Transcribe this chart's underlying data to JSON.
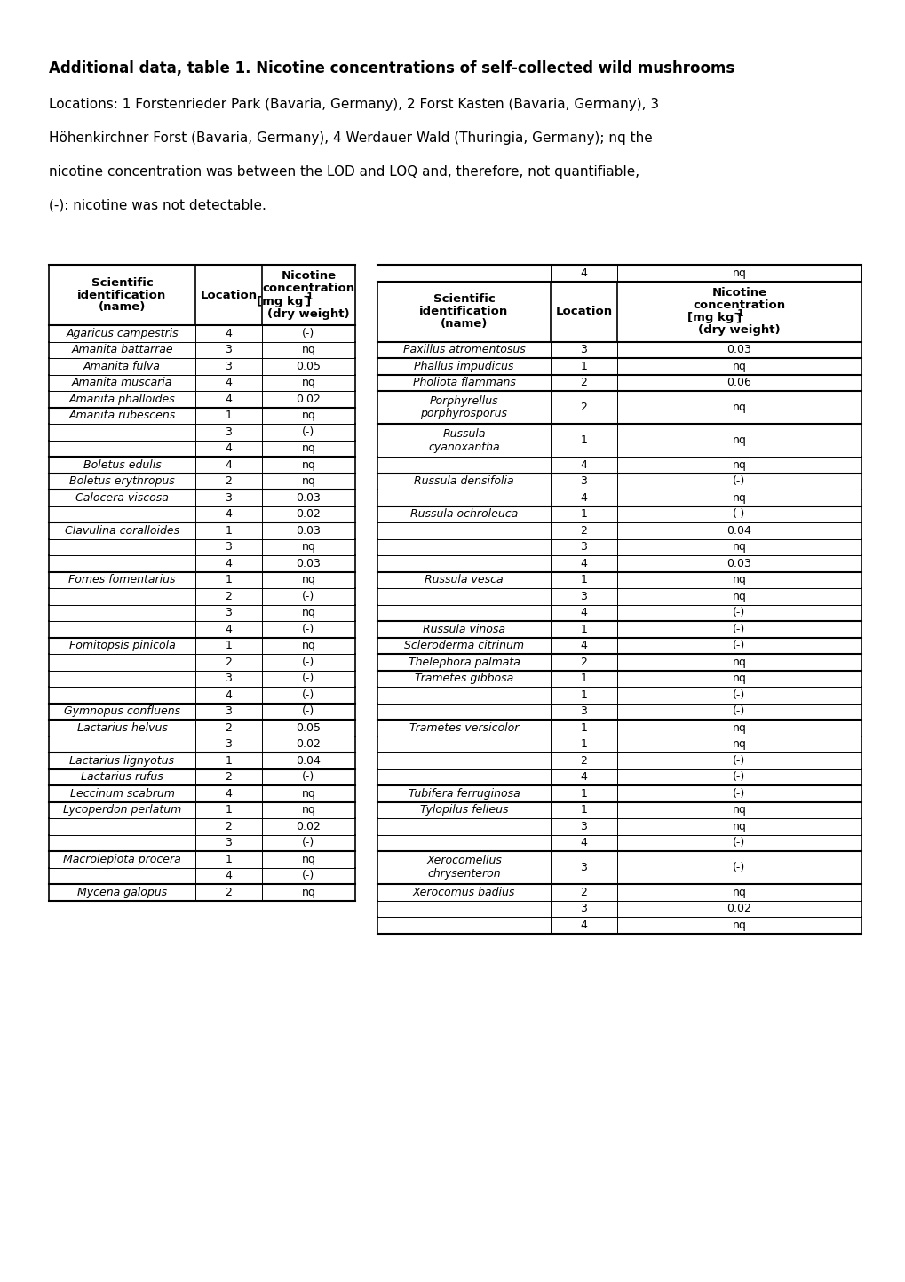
{
  "title_bold": "Additional data, table 1. Nicotine concentrations of self-collected wild mushrooms",
  "footnote_lines": [
    "Locations: 1 Forstenrieder Park (Bavaria, Germany), 2 Forst Kasten (Bavaria, Germany), 3",
    "Höhenkirchner Forst (Bavaria, Germany), 4 Werdauer Wald (Thuringia, Germany); nq the",
    "nicotine concentration was between the LOD and LOQ and, therefore, not quantifiable,",
    "(-): nicotine was not detectable."
  ],
  "left_table": {
    "col_headers": [
      "Scientific\nidentification\n(name)",
      "Location",
      "Nicotine\nconcentration\n[mg kg-1]\n(dry weight)"
    ],
    "rows": [
      [
        "Agaricus campestris",
        "4",
        "(-)"
      ],
      [
        "Amanita battarrae",
        "3",
        "nq"
      ],
      [
        "Amanita fulva",
        "3",
        "0.05"
      ],
      [
        "Amanita muscaria",
        "4",
        "nq"
      ],
      [
        "Amanita phalloides",
        "4",
        "0.02"
      ],
      [
        "Amanita rubescens",
        "1",
        "nq"
      ],
      [
        "",
        "3",
        "(-)"
      ],
      [
        "",
        "4",
        "nq"
      ],
      [
        "Boletus edulis",
        "4",
        "nq"
      ],
      [
        "Boletus erythropus",
        "2",
        "nq"
      ],
      [
        "Calocera viscosa",
        "3",
        "0.03"
      ],
      [
        "",
        "4",
        "0.02"
      ],
      [
        "Clavulina coralloides",
        "1",
        "0.03"
      ],
      [
        "",
        "3",
        "nq"
      ],
      [
        "",
        "4",
        "0.03"
      ],
      [
        "Fomes fomentarius",
        "1",
        "nq"
      ],
      [
        "",
        "2",
        "(-)"
      ],
      [
        "",
        "3",
        "nq"
      ],
      [
        "",
        "4",
        "(-)"
      ],
      [
        "Fomitopsis pinicola",
        "1",
        "nq"
      ],
      [
        "",
        "2",
        "(-)"
      ],
      [
        "",
        "3",
        "(-)"
      ],
      [
        "",
        "4",
        "(-)"
      ],
      [
        "Gymnopus confluens",
        "3",
        "(-)"
      ],
      [
        "Lactarius helvus",
        "2",
        "0.05"
      ],
      [
        "",
        "3",
        "0.02"
      ],
      [
        "Lactarius lignyotus",
        "1",
        "0.04"
      ],
      [
        "Lactarius rufus",
        "2",
        "(-)"
      ],
      [
        "Leccinum scabrum",
        "4",
        "nq"
      ],
      [
        "Lycoperdon perlatum",
        "1",
        "nq"
      ],
      [
        "",
        "2",
        "0.02"
      ],
      [
        "",
        "3",
        "(-)"
      ],
      [
        "Macrolepiota procera",
        "1",
        "nq"
      ],
      [
        "",
        "4",
        "(-)"
      ],
      [
        "Mycena galopus",
        "2",
        "nq"
      ]
    ],
    "thick_after": [
      4,
      7,
      8,
      9,
      11,
      14,
      18,
      22,
      23,
      25,
      26,
      27,
      28,
      31,
      33,
      34
    ]
  },
  "right_table": {
    "col_headers": [
      "Scientific\nidentification\n(name)",
      "Location",
      "Nicotine\nconcentration\n[mg kg-1]\n(dry weight)"
    ],
    "top_row": [
      "",
      "4",
      "nq"
    ],
    "rows": [
      [
        "Paxillus atromentosus",
        "3",
        "0.03"
      ],
      [
        "Phallus impudicus",
        "1",
        "nq"
      ],
      [
        "Pholiota flammans",
        "2",
        "0.06"
      ],
      [
        "Porphyrellus\nporphyrosporus",
        "2",
        "nq"
      ],
      [
        "Russula\ncyanoxantha",
        "1",
        "nq"
      ],
      [
        "",
        "4",
        "nq"
      ],
      [
        "Russula densifolia",
        "3",
        "(-)"
      ],
      [
        "",
        "4",
        "nq"
      ],
      [
        "Russula ochroleuca",
        "1",
        "(-)"
      ],
      [
        "",
        "2",
        "0.04"
      ],
      [
        "",
        "3",
        "nq"
      ],
      [
        "",
        "4",
        "0.03"
      ],
      [
        "Russula vesca",
        "1",
        "nq"
      ],
      [
        "",
        "3",
        "nq"
      ],
      [
        "",
        "4",
        "(-)"
      ],
      [
        "Russula vinosa",
        "1",
        "(-)"
      ],
      [
        "Scleroderma citrinum",
        "4",
        "(-)"
      ],
      [
        "Thelephora palmata",
        "2",
        "nq"
      ],
      [
        "Trametes gibbosa",
        "1",
        "nq"
      ],
      [
        "",
        "1",
        "(-)"
      ],
      [
        "",
        "3",
        "(-)"
      ],
      [
        "Trametes versicolor",
        "1",
        "nq"
      ],
      [
        "",
        "1",
        "nq"
      ],
      [
        "",
        "2",
        "(-)"
      ],
      [
        "",
        "4",
        "(-)"
      ],
      [
        "Tubifera ferruginosa",
        "1",
        "(-)"
      ],
      [
        "Tylopilus felleus",
        "1",
        "nq"
      ],
      [
        "",
        "3",
        "nq"
      ],
      [
        "",
        "4",
        "(-)"
      ],
      [
        "Xerocomellus\nchrysenteron",
        "3",
        "(-)"
      ],
      [
        "Xerocomus badius",
        "2",
        "nq"
      ],
      [
        "",
        "3",
        "0.02"
      ],
      [
        "",
        "4",
        "nq"
      ]
    ],
    "thick_after": [
      0,
      1,
      2,
      3,
      5,
      7,
      11,
      14,
      15,
      16,
      17,
      20,
      24,
      25,
      28,
      29,
      32
    ]
  }
}
